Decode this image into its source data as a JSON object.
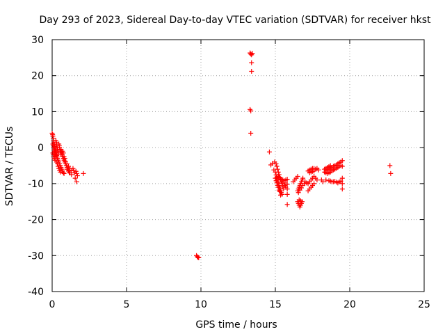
{
  "chart_data": {
    "type": "scatter",
    "title": "Day 293 of 2023, Sidereal Day-to-day VTEC variation (SDTVAR) for receiver hkst",
    "xlabel": "GPS time / hours",
    "ylabel": "SDTVAR / TECUs",
    "xlim": [
      0,
      25
    ],
    "ylim": [
      -40,
      30
    ],
    "xticks": [
      0,
      5,
      10,
      15,
      20,
      25
    ],
    "xtick_labels": [
      "0",
      "5",
      "10",
      "15",
      "20",
      "25"
    ],
    "yticks": [
      30,
      20,
      10,
      0,
      -10,
      -20,
      -30,
      -40
    ],
    "ytick_labels": [
      "30",
      "20",
      "10",
      "0",
      "-10",
      "-20",
      "-30",
      "-40"
    ],
    "grid": true,
    "marker": "+",
    "color": "#ff0000",
    "series": [
      {
        "name": "SDTVAR",
        "points": [
          [
            0.0,
            4.0
          ],
          [
            0.03,
            3.6
          ],
          [
            0.05,
            3.2
          ],
          [
            0.08,
            2.6
          ],
          [
            0.1,
            2.0
          ],
          [
            0.12,
            1.5
          ],
          [
            0.15,
            0.9
          ],
          [
            0.18,
            0.3
          ],
          [
            0.2,
            -0.2
          ],
          [
            0.23,
            -0.8
          ],
          [
            0.25,
            -1.3
          ],
          [
            0.28,
            -1.8
          ],
          [
            0.3,
            -2.2
          ],
          [
            0.33,
            -2.6
          ],
          [
            0.35,
            -3.0
          ],
          [
            0.05,
            1.0
          ],
          [
            0.08,
            0.5
          ],
          [
            0.1,
            0.0
          ],
          [
            0.13,
            -0.5
          ],
          [
            0.15,
            -1.0
          ],
          [
            0.18,
            -1.5
          ],
          [
            0.2,
            -2.0
          ],
          [
            0.22,
            -2.4
          ],
          [
            0.05,
            -1.5
          ],
          [
            0.08,
            -2.0
          ],
          [
            0.1,
            -2.5
          ],
          [
            0.15,
            -3.0
          ],
          [
            0.2,
            -3.5
          ],
          [
            0.25,
            2.0
          ],
          [
            0.28,
            1.5
          ],
          [
            0.3,
            1.0
          ],
          [
            0.32,
            0.5
          ],
          [
            0.35,
            0.0
          ],
          [
            0.38,
            -0.5
          ],
          [
            0.4,
            -1.0
          ],
          [
            0.42,
            -1.5
          ],
          [
            0.45,
            1.0
          ],
          [
            0.48,
            0.5
          ],
          [
            0.5,
            0.0
          ],
          [
            0.52,
            -0.6
          ],
          [
            0.55,
            -1.0
          ],
          [
            0.58,
            -1.5
          ],
          [
            0.6,
            -2.0
          ],
          [
            0.4,
            -3.5
          ],
          [
            0.45,
            -4.0
          ],
          [
            0.5,
            -4.5
          ],
          [
            0.55,
            -5.0
          ],
          [
            0.6,
            -5.5
          ],
          [
            0.65,
            -6.0
          ],
          [
            0.7,
            -6.5
          ],
          [
            0.75,
            -7.0
          ],
          [
            0.8,
            -7.2
          ],
          [
            0.3,
            -4.0
          ],
          [
            0.35,
            -4.5
          ],
          [
            0.4,
            -5.2
          ],
          [
            0.45,
            -5.8
          ],
          [
            0.5,
            -6.3
          ],
          [
            0.55,
            -6.8
          ],
          [
            0.6,
            -0.5
          ],
          [
            0.62,
            -1.0
          ],
          [
            0.65,
            -1.5
          ],
          [
            0.68,
            -2.0
          ],
          [
            0.7,
            -2.5
          ],
          [
            0.75,
            -3.0
          ],
          [
            0.8,
            -3.5
          ],
          [
            0.85,
            -4.0
          ],
          [
            0.9,
            -4.5
          ],
          [
            0.95,
            -5.0
          ],
          [
            1.0,
            -5.5
          ],
          [
            1.05,
            -6.0
          ],
          [
            1.1,
            -6.5
          ],
          [
            1.15,
            -7.0
          ],
          [
            0.7,
            -1.0
          ],
          [
            0.75,
            -1.5
          ],
          [
            0.8,
            -2.5
          ],
          [
            0.85,
            -3.0
          ],
          [
            0.9,
            -3.8
          ],
          [
            1.0,
            -4.5
          ],
          [
            1.1,
            -5.2
          ],
          [
            1.2,
            -5.8
          ],
          [
            1.3,
            -6.3
          ],
          [
            1.0,
            -6.0
          ],
          [
            1.1,
            -6.5
          ],
          [
            1.2,
            -7.0
          ],
          [
            1.3,
            -7.5
          ],
          [
            1.4,
            -5.8
          ],
          [
            1.45,
            -6.4
          ],
          [
            1.5,
            -7.0
          ],
          [
            1.6,
            -6.6
          ],
          [
            1.65,
            -7.2
          ],
          [
            1.7,
            -7.8
          ],
          [
            1.55,
            -8.5
          ],
          [
            1.65,
            -9.5
          ],
          [
            2.1,
            -7.2
          ],
          [
            9.7,
            -30.0
          ],
          [
            9.75,
            -30.3
          ],
          [
            9.8,
            -30.5
          ],
          [
            9.85,
            -30.6
          ],
          [
            13.3,
            26.3
          ],
          [
            13.35,
            26.0
          ],
          [
            13.4,
            25.8
          ],
          [
            13.45,
            26.2
          ],
          [
            13.4,
            23.6
          ],
          [
            13.4,
            21.2
          ],
          [
            13.3,
            10.6
          ],
          [
            13.35,
            10.2
          ],
          [
            13.35,
            4.0
          ],
          [
            14.6,
            -1.2
          ],
          [
            14.7,
            -4.8
          ],
          [
            14.8,
            -4.4
          ],
          [
            14.9,
            -6.2
          ],
          [
            14.95,
            -4.0
          ],
          [
            15.0,
            -6.8
          ],
          [
            15.05,
            -7.6
          ],
          [
            15.1,
            -8.3
          ],
          [
            15.15,
            -9.0
          ],
          [
            15.2,
            -9.8
          ],
          [
            15.25,
            -10.5
          ],
          [
            15.3,
            -11.2
          ],
          [
            15.35,
            -12.0
          ],
          [
            15.4,
            -12.5
          ],
          [
            15.45,
            -13.0
          ],
          [
            15.0,
            -8.5
          ],
          [
            15.05,
            -9.2
          ],
          [
            15.1,
            -9.8
          ],
          [
            15.15,
            -10.5
          ],
          [
            15.2,
            -11.0
          ],
          [
            15.25,
            -11.8
          ],
          [
            15.3,
            -12.2
          ],
          [
            15.35,
            -13.2
          ],
          [
            15.05,
            -4.5
          ],
          [
            15.1,
            -5.2
          ],
          [
            15.15,
            -6.0
          ],
          [
            15.2,
            -6.8
          ],
          [
            15.25,
            -7.5
          ],
          [
            15.3,
            -8.2
          ],
          [
            15.35,
            -8.8
          ],
          [
            15.4,
            -9.5
          ],
          [
            15.45,
            -10.0
          ],
          [
            15.5,
            -10.8
          ],
          [
            15.55,
            -11.5
          ],
          [
            15.2,
            -8.0
          ],
          [
            15.3,
            -8.5
          ],
          [
            15.4,
            -8.8
          ],
          [
            15.5,
            -9.0
          ],
          [
            15.6,
            -9.2
          ],
          [
            15.7,
            -9.0
          ],
          [
            15.6,
            -9.8
          ],
          [
            15.65,
            -10.5
          ],
          [
            15.7,
            -11.0
          ],
          [
            15.8,
            -8.8
          ],
          [
            15.8,
            -10.2
          ],
          [
            15.8,
            -11.5
          ],
          [
            15.8,
            -13.0
          ],
          [
            15.8,
            -15.8
          ],
          [
            16.2,
            -9.5
          ],
          [
            16.3,
            -9.0
          ],
          [
            16.4,
            -8.5
          ],
          [
            16.5,
            -8.0
          ],
          [
            16.5,
            -15.0
          ],
          [
            16.55,
            -15.5
          ],
          [
            16.6,
            -16.0
          ],
          [
            16.65,
            -16.5
          ],
          [
            16.7,
            -16.0
          ],
          [
            16.75,
            -15.5
          ],
          [
            16.8,
            -15.0
          ],
          [
            16.6,
            -14.5
          ],
          [
            16.7,
            -14.8
          ],
          [
            16.5,
            -12.0
          ],
          [
            16.55,
            -11.5
          ],
          [
            16.6,
            -11.0
          ],
          [
            16.65,
            -10.5
          ],
          [
            16.7,
            -10.0
          ],
          [
            16.75,
            -9.5
          ],
          [
            16.8,
            -9.0
          ],
          [
            16.85,
            -8.5
          ],
          [
            16.55,
            -12.5
          ],
          [
            16.65,
            -11.8
          ],
          [
            16.75,
            -11.2
          ],
          [
            16.85,
            -10.5
          ],
          [
            16.95,
            -10.0
          ],
          [
            17.0,
            -9.5
          ],
          [
            17.1,
            -9.8
          ],
          [
            17.2,
            -10.0
          ],
          [
            17.3,
            -9.5
          ],
          [
            17.4,
            -9.0
          ],
          [
            17.5,
            -8.5
          ],
          [
            17.6,
            -8.0
          ],
          [
            17.7,
            -8.5
          ],
          [
            17.8,
            -9.0
          ],
          [
            17.2,
            -12.0
          ],
          [
            17.3,
            -11.5
          ],
          [
            17.4,
            -11.0
          ],
          [
            17.5,
            -10.5
          ],
          [
            17.6,
            -10.0
          ],
          [
            17.2,
            -6.5
          ],
          [
            17.3,
            -6.2
          ],
          [
            17.4,
            -6.0
          ],
          [
            17.5,
            -5.8
          ],
          [
            17.6,
            -5.8
          ],
          [
            17.7,
            -6.0
          ],
          [
            17.8,
            -5.8
          ],
          [
            17.9,
            -6.2
          ],
          [
            17.3,
            -7.0
          ],
          [
            17.4,
            -6.8
          ],
          [
            17.5,
            -6.6
          ],
          [
            17.6,
            -6.5
          ],
          [
            18.1,
            -9.0
          ],
          [
            18.2,
            -9.5
          ],
          [
            18.4,
            -9.0
          ],
          [
            18.3,
            -6.8
          ],
          [
            18.4,
            -6.5
          ],
          [
            18.5,
            -6.2
          ],
          [
            18.6,
            -6.0
          ],
          [
            18.7,
            -5.8
          ],
          [
            18.8,
            -5.5
          ],
          [
            18.9,
            -5.2
          ],
          [
            19.0,
            -5.0
          ],
          [
            19.1,
            -4.8
          ],
          [
            19.2,
            -4.5
          ],
          [
            19.3,
            -4.2
          ],
          [
            19.4,
            -4.0
          ],
          [
            19.5,
            -3.6
          ],
          [
            18.3,
            -6.0
          ],
          [
            18.4,
            -5.8
          ],
          [
            18.5,
            -5.5
          ],
          [
            18.6,
            -5.3
          ],
          [
            18.7,
            -5.0
          ],
          [
            18.4,
            -7.0
          ],
          [
            18.5,
            -7.2
          ],
          [
            18.6,
            -7.0
          ],
          [
            18.7,
            -6.8
          ],
          [
            18.8,
            -6.5
          ],
          [
            18.9,
            -6.2
          ],
          [
            19.0,
            -6.0
          ],
          [
            19.1,
            -5.8
          ],
          [
            19.2,
            -5.5
          ],
          [
            19.3,
            -5.2
          ],
          [
            19.4,
            -5.0
          ],
          [
            18.6,
            -9.2
          ],
          [
            18.7,
            -9.3
          ],
          [
            18.8,
            -9.5
          ],
          [
            18.9,
            -9.5
          ],
          [
            19.0,
            -9.4
          ],
          [
            19.1,
            -9.6
          ],
          [
            19.2,
            -9.8
          ],
          [
            19.3,
            -9.5
          ],
          [
            19.4,
            -9.3
          ],
          [
            19.5,
            -5.2
          ],
          [
            19.5,
            -8.5
          ],
          [
            19.5,
            -10.0
          ],
          [
            19.5,
            -11.5
          ],
          [
            22.7,
            -5.0
          ],
          [
            22.75,
            -7.2
          ]
        ]
      }
    ]
  }
}
